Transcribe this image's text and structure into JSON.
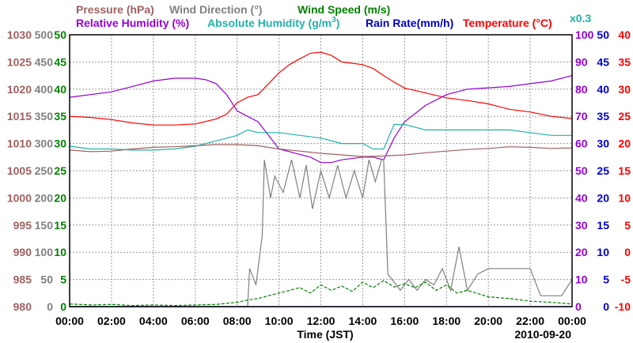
{
  "legend": {
    "pressure": "Pressure (hPa)",
    "wind_direction": "Wind Direction (°)",
    "wind_speed": "Wind Speed (m/s)",
    "relative_humidity": "Relative Humidity (%)",
    "absolute_humidity_pre": "Absolute Humidity (g/m",
    "absolute_humidity_sup": "3",
    "absolute_humidity_post": ")",
    "rain_rate": "Rain Rate(mm/h)",
    "temperature": "Temperature (°C)",
    "rain_scale": "x0.3"
  },
  "chart_data": {
    "type": "line",
    "xlabel": "Time (JST)",
    "date": "2010-09-20",
    "grid": true,
    "x_ticks": [
      "00:00",
      "02:00",
      "04:00",
      "06:00",
      "08:00",
      "10:00",
      "12:00",
      "14:00",
      "16:00",
      "18:00",
      "20:00",
      "22:00",
      "00:00"
    ],
    "axes": {
      "pressure": {
        "ticks": [
          "1030",
          "1025",
          "1020",
          "1015",
          "1010",
          "1005",
          "1000",
          "995",
          "990",
          "985",
          "980"
        ],
        "range": [
          980,
          1030
        ],
        "color": "#a06060"
      },
      "wind_direction": {
        "ticks": [
          "500",
          "450",
          "400",
          "350",
          "300",
          "250",
          "200",
          "150",
          "100",
          "50",
          "0"
        ],
        "range": [
          0,
          500
        ],
        "color": "#808080"
      },
      "wind_speed": {
        "ticks": [
          "50",
          "45",
          "40",
          "35",
          "30",
          "25",
          "20",
          "15",
          "10",
          "5",
          "0"
        ],
        "range": [
          0,
          50
        ],
        "color": "#008000"
      },
      "relative_humidity": {
        "ticks": [
          "100",
          "90",
          "80",
          "70",
          "60",
          "50",
          "40",
          "30",
          "20",
          "10",
          "0"
        ],
        "range": [
          0,
          100
        ],
        "color": "#9400d3"
      },
      "rain_rate": {
        "ticks": [
          "50",
          "45",
          "40",
          "35",
          "30",
          "25",
          "20",
          "15",
          "10",
          "5",
          "0"
        ],
        "range": [
          0,
          50
        ],
        "color": "#0000cd"
      },
      "temperature": {
        "ticks": [
          "40",
          "35",
          "30",
          "25",
          "20",
          "15",
          "10",
          "5",
          "0",
          "-5",
          "-10"
        ],
        "range": [
          -10,
          40
        ],
        "color": "#ff0000"
      }
    },
    "series": [
      {
        "name": "Temperature (°C)",
        "axis": "temperature",
        "color": "#ff0000",
        "x": [
          0,
          1,
          2,
          3,
          4,
          5,
          6,
          7,
          7.5,
          8,
          8.5,
          9,
          9.5,
          10,
          10.5,
          11,
          11.5,
          12,
          12.5,
          13,
          14,
          14.5,
          15,
          15.5,
          16,
          17,
          18,
          19,
          20,
          21,
          22,
          23,
          24
        ],
        "y": [
          25,
          24.8,
          24.4,
          23.8,
          23.4,
          23.4,
          23.6,
          24.5,
          25.4,
          27.5,
          28.5,
          29,
          31,
          33,
          34.5,
          35.6,
          36.6,
          36.8,
          36.2,
          35,
          34.5,
          33.8,
          32.5,
          31.3,
          30.2,
          29.3,
          28.4,
          27.9,
          27.3,
          26.3,
          25.8,
          25,
          24.6
        ]
      },
      {
        "name": "Relative Humidity (%)",
        "axis": "relative_humidity",
        "color": "#9400d3",
        "x": [
          0,
          0.5,
          1,
          2,
          3,
          4,
          5,
          6,
          6.5,
          7,
          7.5,
          8,
          8.5,
          9,
          9.5,
          10,
          10.5,
          11,
          11.5,
          12,
          12.5,
          13,
          14,
          14.5,
          15,
          15.5,
          16,
          17,
          18,
          19,
          20,
          21,
          22,
          23,
          24
        ],
        "y": [
          77,
          77.5,
          78,
          79,
          81,
          83,
          84,
          84,
          83.5,
          82,
          78,
          72,
          70,
          68,
          63,
          58,
          57,
          56,
          55,
          53,
          53,
          54,
          55,
          55,
          54,
          62,
          68,
          74,
          78,
          80,
          80.5,
          81,
          82,
          83,
          85
        ]
      },
      {
        "name": "Absolute Humidity (g/m3)",
        "axis": "wind_speed",
        "color": "#20b2aa",
        "x": [
          0,
          1,
          2,
          3,
          4,
          5,
          6,
          7,
          8,
          8.5,
          9,
          10,
          11,
          12,
          13,
          14,
          14.5,
          15,
          15.5,
          16,
          17,
          18,
          19,
          20,
          21,
          22,
          23,
          24
        ],
        "y": [
          29.5,
          29,
          29,
          28.8,
          28.8,
          29,
          29.5,
          30.5,
          31.5,
          32.5,
          32,
          32,
          31.5,
          31,
          30,
          30,
          29,
          29,
          33.5,
          33.5,
          32.5,
          32.5,
          32.5,
          32.5,
          32.5,
          32,
          31.5,
          31.5
        ]
      },
      {
        "name": "Pressure (hPa)",
        "axis": "pressure",
        "color": "#a06060",
        "x": [
          0,
          1,
          2,
          3,
          4,
          5,
          6,
          7,
          8,
          9,
          10,
          11,
          12,
          13,
          14,
          15,
          16,
          17,
          18,
          19,
          20,
          21,
          22,
          23,
          24
        ],
        "y": [
          1008.8,
          1008.5,
          1008.6,
          1009,
          1009.3,
          1009.4,
          1009.6,
          1009.8,
          1009.8,
          1009.6,
          1009,
          1008.6,
          1008.2,
          1007.9,
          1007.6,
          1007.7,
          1007.9,
          1008.3,
          1008.6,
          1008.9,
          1009.1,
          1009.4,
          1009.3,
          1009.1,
          1009.2
        ]
      },
      {
        "name": "Wind Direction (°)",
        "axis": "wind_direction",
        "color": "#808080",
        "x": [
          0,
          8.5,
          8.6,
          8.9,
          9.2,
          9.3,
          9.6,
          9.8,
          10.2,
          10.6,
          11,
          11.3,
          11.6,
          12,
          12.4,
          12.8,
          13.2,
          13.6,
          14,
          14.3,
          14.6,
          14.9,
          15,
          15.2,
          15.4,
          15.8,
          16.2,
          16.6,
          17,
          17.4,
          17.8,
          18.2,
          18.6,
          19,
          19.5,
          20,
          21,
          22,
          22.5,
          23,
          23.5,
          24
        ],
        "y": [
          0,
          0,
          70,
          40,
          130,
          270,
          200,
          240,
          210,
          270,
          200,
          260,
          180,
          250,
          200,
          260,
          200,
          250,
          200,
          270,
          230,
          270,
          270,
          60,
          50,
          30,
          50,
          30,
          50,
          40,
          70,
          30,
          110,
          30,
          60,
          70,
          70,
          70,
          20,
          20,
          20,
          50
        ]
      },
      {
        "name": "Wind Speed (m/s)",
        "axis": "wind_speed",
        "color": "#008000",
        "x": [
          0,
          1,
          2,
          3,
          4,
          5,
          6,
          7,
          8,
          8.5,
          9,
          9.5,
          10,
          10.5,
          11,
          11.5,
          12,
          12.5,
          13,
          13.5,
          14,
          14.5,
          15,
          15.5,
          16,
          16.5,
          17,
          17.5,
          18,
          18.5,
          19,
          20,
          21,
          22,
          23,
          24
        ],
        "y": [
          0.5,
          0.3,
          0.4,
          0.2,
          0.3,
          0.2,
          0.3,
          0.4,
          0.8,
          1.2,
          1.5,
          2,
          2.5,
          3,
          3.5,
          2.5,
          4,
          3,
          3.8,
          2.8,
          4.5,
          3.5,
          4.8,
          3.6,
          4.2,
          3.5,
          4.5,
          3,
          4,
          2.5,
          3,
          1.8,
          1.5,
          1,
          0.8,
          0.5
        ]
      },
      {
        "name": "Rain Rate(mm/h)",
        "axis": "rain_rate",
        "color": "#0000cd",
        "x": [
          0,
          24
        ],
        "y": [
          0,
          0
        ]
      }
    ]
  }
}
